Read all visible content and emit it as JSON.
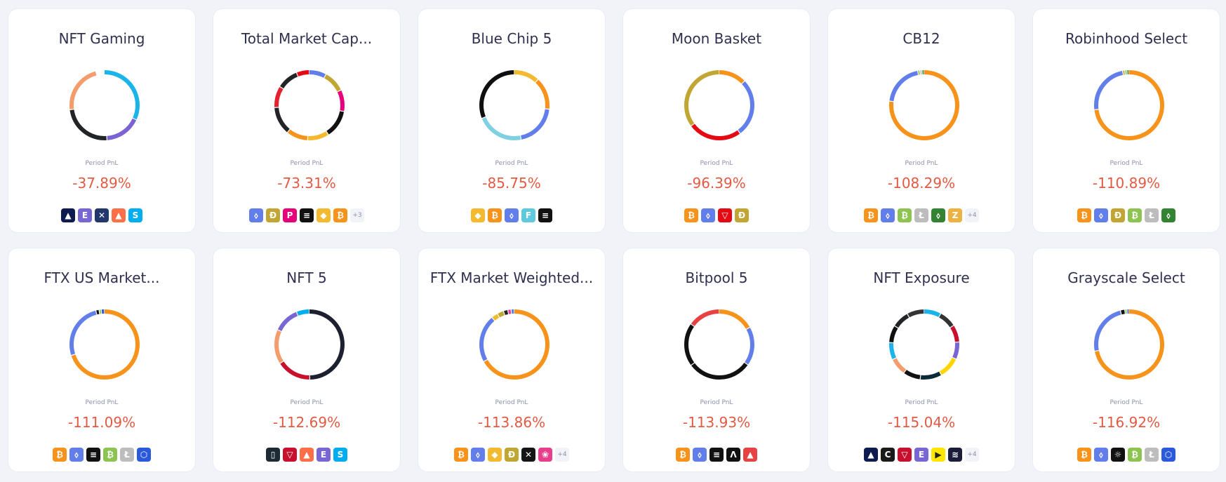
{
  "pnl_label": "Period PnL",
  "coin_styles": {
    "btc": {
      "bg": "#f7931a",
      "glyph": "₿"
    },
    "eth": {
      "bg": "#627eea",
      "glyph": "⬨"
    },
    "doge": {
      "bg": "#c2a633",
      "glyph": "Đ"
    },
    "dot": {
      "bg": "#e6007a",
      "glyph": "P"
    },
    "sol": {
      "bg": "#111111",
      "glyph": "≡"
    },
    "bnb": {
      "bg": "#f3ba2f",
      "glyph": "◆"
    },
    "btt": {
      "bg": "#f7931a",
      "glyph": "₿"
    },
    "ftt": {
      "bg": "#5fcade",
      "glyph": "F"
    },
    "trx": {
      "bg": "#e50914",
      "glyph": "▽"
    },
    "bch": {
      "bg": "#8dc351",
      "glyph": "₿"
    },
    "ltc": {
      "bg": "#bdbdbd",
      "glyph": "Ł"
    },
    "etc": {
      "bg": "#328332",
      "glyph": "⬨"
    },
    "zec": {
      "bg": "#ecb244",
      "glyph": "Z"
    },
    "link": {
      "bg": "#2a5ada",
      "glyph": "⬡"
    },
    "imx": {
      "bg": "#0d1b4f",
      "glyph": "▲"
    },
    "enj": {
      "bg": "#7866d5",
      "glyph": "E"
    },
    "mana": {
      "bg": "#ff6f47",
      "glyph": "▲"
    },
    "sand": {
      "bg": "#00adef",
      "glyph": "S"
    },
    "axs": {
      "bg": "#24376b",
      "glyph": "✕"
    },
    "xlm": {
      "bg": "#151515",
      "glyph": "✕"
    },
    "mbox": {
      "bg": "#e83e8c",
      "glyph": "❀"
    },
    "avax": {
      "bg": "#e84142",
      "glyph": "▲"
    },
    "ftm": {
      "bg": "#111111",
      "glyph": "Λ"
    },
    "cvx": {
      "bg": "#1a1a1a",
      "glyph": "C"
    },
    "lrc": {
      "bg": "#c8102e",
      "glyph": "▽"
    },
    "rndr": {
      "bg": "#1c2a36",
      "glyph": "▯"
    },
    "gala": {
      "bg": "#ffe600",
      "glyph": "▶"
    },
    "theta": {
      "bg": "#111111",
      "glyph": "☼"
    },
    "gfi": {
      "bg": "#1b1b3a",
      "glyph": "≋"
    }
  },
  "baskets": [
    {
      "name": "NFT Gaming",
      "pnl": "-37.89%",
      "segments": [
        [
          0.32,
          "#1ab4ea"
        ],
        [
          0.17,
          "#7b63d4"
        ],
        [
          0.24,
          "#222428"
        ],
        [
          0.23,
          "#f49c6c"
        ],
        [
          0.04,
          "#ffffff"
        ]
      ],
      "coins": [
        "imx",
        "enj",
        "axs",
        "mana",
        "sand"
      ],
      "more": ""
    },
    {
      "name": "Total Market Cap...",
      "pnl": "-73.31%",
      "segments": [
        [
          0.08,
          "#627eea"
        ],
        [
          0.1,
          "#c2a633"
        ],
        [
          0.1,
          "#e6007a"
        ],
        [
          0.13,
          "#111111"
        ],
        [
          0.1,
          "#f3ba2f"
        ],
        [
          0.1,
          "#f7931a"
        ],
        [
          0.13,
          "#222428"
        ],
        [
          0.1,
          "#e5212d"
        ],
        [
          0.1,
          "#222428"
        ],
        [
          0.06,
          "#e50914"
        ]
      ],
      "coins": [
        "eth",
        "doge",
        "dot",
        "sol",
        "bnb",
        "btt"
      ],
      "more": "+3"
    },
    {
      "name": "Blue Chip 5",
      "pnl": "-85.75%",
      "segments": [
        [
          0.12,
          "#f3ba2f"
        ],
        [
          0.15,
          "#f7931a"
        ],
        [
          0.2,
          "#627eea"
        ],
        [
          0.22,
          "#7fd0e0"
        ],
        [
          0.31,
          "#0f0f0f"
        ]
      ],
      "coins": [
        "bnb",
        "btc",
        "eth",
        "ftt",
        "sol"
      ],
      "more": ""
    },
    {
      "name": "Moon Basket",
      "pnl": "-96.39%",
      "segments": [
        [
          0.13,
          "#f7931a"
        ],
        [
          0.27,
          "#627eea"
        ],
        [
          0.25,
          "#e50914"
        ],
        [
          0.35,
          "#c2a633"
        ]
      ],
      "coins": [
        "btc",
        "eth",
        "trx",
        "doge"
      ],
      "more": ""
    },
    {
      "name": "CB12",
      "pnl": "-108.29%",
      "segments": [
        [
          0.77,
          "#f7931a"
        ],
        [
          0.2,
          "#627eea"
        ],
        [
          0.01,
          "#8dc351"
        ],
        [
          0.01,
          "#bdbdbd"
        ],
        [
          0.01,
          "#328332"
        ]
      ],
      "coins": [
        "btc",
        "eth",
        "bch",
        "ltc",
        "etc",
        "zec"
      ],
      "more": "+4"
    },
    {
      "name": "Robinhood Select",
      "pnl": "-110.89%",
      "segments": [
        [
          0.73,
          "#f7931a"
        ],
        [
          0.24,
          "#627eea"
        ],
        [
          0.01,
          "#c2a633"
        ],
        [
          0.01,
          "#8dc351"
        ],
        [
          0.01,
          "#328332"
        ]
      ],
      "coins": [
        "btc",
        "eth",
        "doge",
        "bch",
        "ltc",
        "etc"
      ],
      "more": ""
    },
    {
      "name": "FTX US Market...",
      "pnl": "-111.09%",
      "segments": [
        [
          0.7,
          "#f7931a"
        ],
        [
          0.26,
          "#627eea"
        ],
        [
          0.015,
          "#111111"
        ],
        [
          0.01,
          "#8dc351"
        ],
        [
          0.015,
          "#2a5ada"
        ]
      ],
      "coins": [
        "btc",
        "eth",
        "sol",
        "bch",
        "ltc",
        "link"
      ],
      "more": ""
    },
    {
      "name": "NFT 5",
      "pnl": "-112.69%",
      "segments": [
        [
          0.5,
          "#1c2030"
        ],
        [
          0.16,
          "#c8102e"
        ],
        [
          0.16,
          "#f49c6c"
        ],
        [
          0.12,
          "#7866d5"
        ],
        [
          0.06,
          "#00adef"
        ]
      ],
      "coins": [
        "rndr",
        "lrc",
        "mana",
        "enj",
        "sand"
      ],
      "more": ""
    },
    {
      "name": "FTX Market Weighted...",
      "pnl": "-113.86%",
      "segments": [
        [
          0.67,
          "#f7931a"
        ],
        [
          0.22,
          "#627eea"
        ],
        [
          0.03,
          "#f3ba2f"
        ],
        [
          0.03,
          "#c2a633"
        ],
        [
          0.02,
          "#222428"
        ],
        [
          0.015,
          "#e83e8c"
        ],
        [
          0.015,
          "#627eea"
        ]
      ],
      "coins": [
        "btc",
        "eth",
        "bnb",
        "doge",
        "xlm",
        "mbox"
      ],
      "more": "+4"
    },
    {
      "name": "Bitpool 5",
      "pnl": "-113.93%",
      "segments": [
        [
          0.17,
          "#f7931a"
        ],
        [
          0.18,
          "#627eea"
        ],
        [
          0.3,
          "#111111"
        ],
        [
          0.2,
          "#111111"
        ],
        [
          0.15,
          "#e84142"
        ]
      ],
      "coins": [
        "btc",
        "eth",
        "sol",
        "ftm",
        "avax"
      ],
      "more": ""
    },
    {
      "name": "NFT Exposure",
      "pnl": "-115.04%",
      "segments": [
        [
          0.08,
          "#1ab4ea"
        ],
        [
          0.08,
          "#333333"
        ],
        [
          0.08,
          "#c8102e"
        ],
        [
          0.08,
          "#7866d5"
        ],
        [
          0.1,
          "#ffd500"
        ],
        [
          0.1,
          "#0d2a3a"
        ],
        [
          0.08,
          "#111111"
        ],
        [
          0.08,
          "#f49c6c"
        ],
        [
          0.08,
          "#1ab4ea"
        ],
        [
          0.08,
          "#111111"
        ],
        [
          0.08,
          "#222428"
        ],
        [
          0.08,
          "#333333"
        ]
      ],
      "coins": [
        "imx",
        "cvx",
        "lrc",
        "enj",
        "gala",
        "gfi"
      ],
      "more": "+4"
    },
    {
      "name": "Grayscale Select",
      "pnl": "-116.92%",
      "segments": [
        [
          0.72,
          "#f7931a"
        ],
        [
          0.24,
          "#627eea"
        ],
        [
          0.02,
          "#111111"
        ],
        [
          0.01,
          "#8dc351"
        ],
        [
          0.01,
          "#2a5ada"
        ]
      ],
      "coins": [
        "btc",
        "eth",
        "theta",
        "bch",
        "ltc",
        "link"
      ],
      "more": ""
    }
  ]
}
